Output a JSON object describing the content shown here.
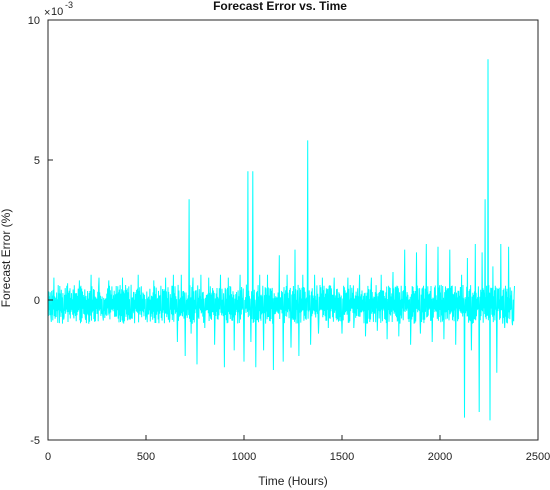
{
  "chart_data": {
    "type": "line",
    "title": "Forecast Error vs. Time",
    "xlabel": "Time (Hours)",
    "ylabel": "Forecast Error (%)",
    "xlim": [
      0,
      2500
    ],
    "ylim": [
      -5,
      10
    ],
    "y_exponent_label": "10",
    "y_exponent_power": "-3",
    "x_ticks": [
      "0",
      "500",
      "1000",
      "1500",
      "2000",
      "2500"
    ],
    "y_ticks": [
      "-5",
      "0",
      "5",
      "10"
    ],
    "grid": false,
    "line_color": "#00ffff",
    "series": [
      {
        "x": [
          0,
          15,
          30,
          40,
          60,
          80,
          100,
          130,
          160,
          190,
          220,
          250,
          260,
          280,
          310,
          340,
          380,
          420,
          460,
          500,
          540,
          580,
          600,
          620,
          640,
          660,
          680,
          700,
          720,
          730,
          740,
          760,
          780,
          800,
          820,
          850,
          880,
          900,
          920,
          950,
          980,
          1000,
          1020,
          1035,
          1045,
          1060,
          1080,
          1100,
          1120,
          1150,
          1180,
          1200,
          1220,
          1240,
          1260,
          1280,
          1300,
          1325,
          1340,
          1360,
          1380,
          1400,
          1430,
          1460,
          1500,
          1530,
          1560,
          1590,
          1620,
          1650,
          1680,
          1700,
          1730,
          1760,
          1790,
          1820,
          1850,
          1880,
          1900,
          1930,
          1960,
          1990,
          2020,
          2050,
          2080,
          2110,
          2125,
          2140,
          2160,
          2180,
          2200,
          2215,
          2230,
          2245,
          2255,
          2270,
          2290,
          2310,
          2330,
          2350,
          2370,
          2380
        ],
        "y": [
          0.2,
          -0.6,
          0.8,
          -0.5,
          0.5,
          -0.7,
          0.6,
          -0.5,
          0.7,
          -0.6,
          0.9,
          -0.5,
          0.8,
          -0.6,
          0.7,
          -0.6,
          0.8,
          -0.7,
          0.9,
          -0.6,
          0.7,
          -0.5,
          0.8,
          -0.8,
          0.9,
          -1.5,
          0.9,
          -2.0,
          3.6,
          -1.2,
          0.8,
          -2.3,
          0.9,
          -1.0,
          0.8,
          -1.6,
          0.9,
          -2.4,
          0.8,
          -1.8,
          0.9,
          -2.2,
          4.6,
          -1.5,
          4.6,
          -2.4,
          0.9,
          -1.8,
          0.9,
          -2.5,
          1.6,
          -2.2,
          0.9,
          -1.7,
          1.8,
          -2.0,
          0.9,
          5.7,
          -1.6,
          0.9,
          -1.2,
          0.8,
          -1.0,
          0.8,
          -1.2,
          0.8,
          -1.0,
          0.9,
          -1.3,
          0.8,
          -1.1,
          0.9,
          -1.4,
          1.0,
          -1.3,
          1.8,
          -1.6,
          1.7,
          -1.2,
          2.0,
          -1.5,
          1.9,
          -1.4,
          1.8,
          -1.6,
          0.9,
          -4.2,
          1.5,
          -1.8,
          2.0,
          -4.0,
          1.7,
          3.6,
          8.6,
          -4.3,
          1.2,
          -2.6,
          2.0,
          -1.0,
          1.9,
          -0.9,
          0.5
        ]
      }
    ]
  }
}
